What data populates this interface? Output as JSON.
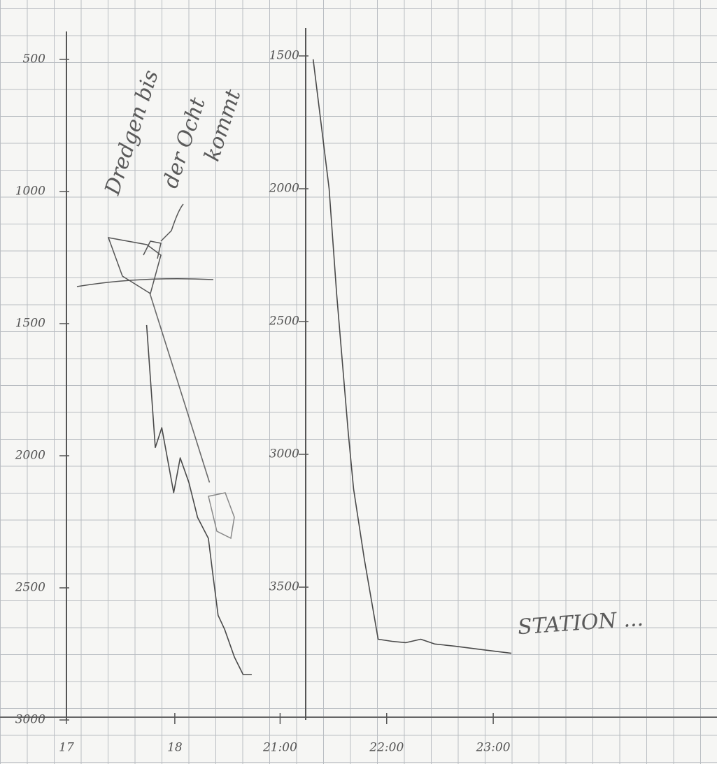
{
  "chart_data": [
    {
      "type": "line",
      "annotations": [
        "Dredgen bis",
        "der Ocht",
        "kommt"
      ],
      "xlim": [
        17,
        18.84
      ],
      "xticks": [
        17,
        18
      ],
      "ylim": [
        3000,
        500
      ],
      "yticks": [
        500,
        1000,
        1500,
        2000,
        2500,
        3000
      ],
      "series": [
        {
          "color": "#4a4a4a",
          "x": [
            17.74,
            17.82,
            17.88,
            17.99,
            18.05,
            18.13,
            18.21,
            18.31,
            18.35,
            18.4,
            18.46,
            18.55,
            18.63,
            18.71
          ],
          "values": [
            1505,
            1969,
            1894,
            2140,
            2008,
            2101,
            2233,
            2313,
            2445,
            2604,
            2657,
            2762,
            2828,
            2828
          ]
        },
        {
          "color": "#6a6a6a",
          "x": [
            17.77,
            18.32
          ],
          "values": [
            1386,
            2101
          ]
        }
      ]
    },
    {
      "type": "line",
      "annotations": [
        "STATION ..."
      ],
      "xlim": [
        21.24,
        25.1
      ],
      "xticks": [
        {
          "value": 21,
          "label": "21:00"
        },
        {
          "value": 22,
          "label": "22:00"
        },
        {
          "value": 23,
          "label": "23:00"
        }
      ],
      "ylim": [
        4000,
        1500
      ],
      "yticks": [
        1500,
        2000,
        2500,
        3000,
        3500
      ],
      "series": [
        {
          "color": "#4a4a4a",
          "x": [
            21.31,
            21.46,
            21.53,
            21.64,
            21.69,
            21.79,
            21.92,
            22.05,
            22.18,
            22.32,
            22.45,
            22.64,
            22.91,
            23.17
          ],
          "values": [
            1513,
            2000,
            2394,
            2920,
            3131,
            3394,
            3696,
            3704,
            3709,
            3696,
            3714,
            3722,
            3736,
            3749
          ]
        }
      ]
    }
  ]
}
